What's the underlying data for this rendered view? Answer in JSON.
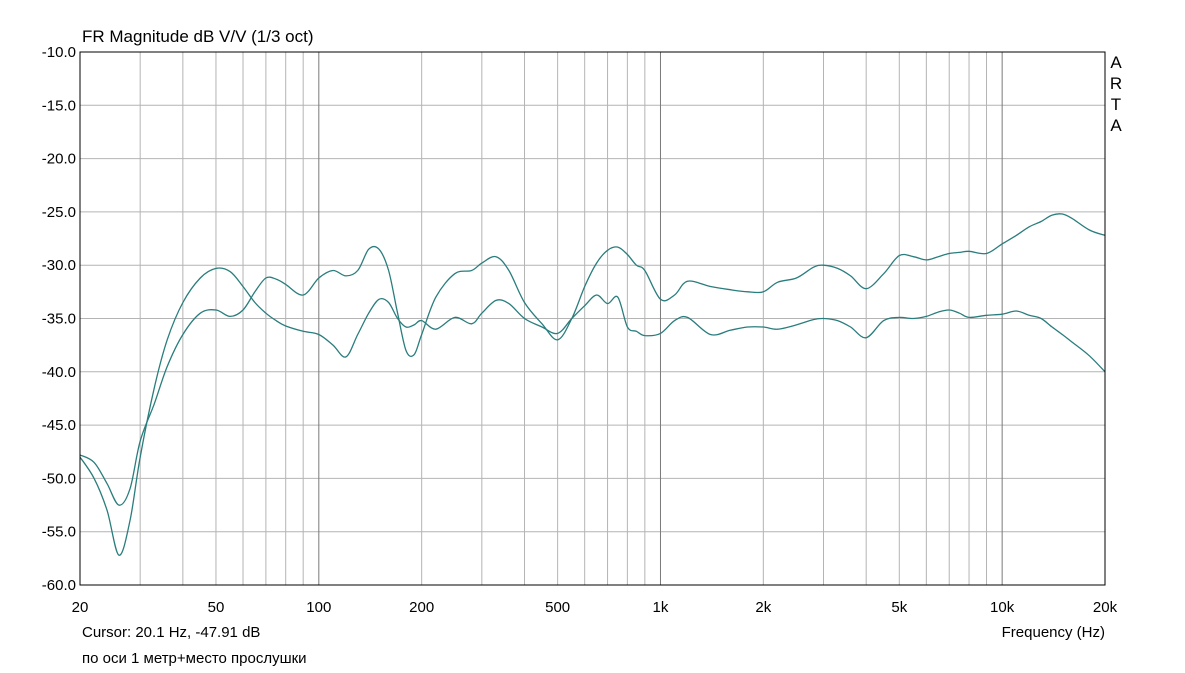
{
  "chart_data": {
    "type": "line",
    "title": "FR Magnitude dB V/V (1/3 oct)",
    "brand": "ARTA",
    "xlabel": "Frequency (Hz)",
    "x_scale": "log",
    "xlim": [
      20,
      20000
    ],
    "ylim": [
      -60,
      -10
    ],
    "grid": true,
    "line_color": "#2a7d7d",
    "y_ticks": [
      {
        "value": -10,
        "label": "-10.0"
      },
      {
        "value": -15,
        "label": "-15.0"
      },
      {
        "value": -20,
        "label": "-20.0"
      },
      {
        "value": -25,
        "label": "-25.0"
      },
      {
        "value": -30,
        "label": "-30.0"
      },
      {
        "value": -35,
        "label": "-35.0"
      },
      {
        "value": -40,
        "label": "-40.0"
      },
      {
        "value": -45,
        "label": "-45.0"
      },
      {
        "value": -50,
        "label": "-50.0"
      },
      {
        "value": -55,
        "label": "-55.0"
      },
      {
        "value": -60,
        "label": "-60.0"
      }
    ],
    "x_ticks": [
      {
        "value": 20,
        "label": "20"
      },
      {
        "value": 50,
        "label": "50"
      },
      {
        "value": 100,
        "label": "100"
      },
      {
        "value": 200,
        "label": "200"
      },
      {
        "value": 500,
        "label": "500"
      },
      {
        "value": 1000,
        "label": "1k"
      },
      {
        "value": 2000,
        "label": "2k"
      },
      {
        "value": 5000,
        "label": "5k"
      },
      {
        "value": 10000,
        "label": "10k"
      },
      {
        "value": 20000,
        "label": "20k"
      }
    ],
    "series": [
      {
        "x": [
          20,
          22,
          24,
          26,
          28,
          30,
          33,
          36,
          40,
          45,
          50,
          55,
          60,
          65,
          70,
          75,
          80,
          90,
          100,
          110,
          120,
          130,
          140,
          150,
          160,
          170,
          180,
          190,
          200,
          220,
          250,
          280,
          300,
          330,
          360,
          400,
          450,
          500,
          550,
          600,
          650,
          700,
          750,
          800,
          850,
          900,
          1000,
          1100,
          1200,
          1400,
          1600,
          1800,
          2000,
          2200,
          2500,
          2800,
          3000,
          3300,
          3600,
          4000,
          4500,
          5000,
          5500,
          6000,
          6500,
          7000,
          7500,
          8000,
          9000,
          10000,
          11000,
          12000,
          13000,
          14000,
          15000,
          16000,
          18000,
          20000
        ],
        "y": [
          -48.0,
          -50.0,
          -53.0,
          -57.2,
          -54.0,
          -48.0,
          -41.5,
          -37.0,
          -33.5,
          -31.2,
          -30.3,
          -30.6,
          -32.0,
          -33.5,
          -34.5,
          -35.2,
          -35.7,
          -36.2,
          -36.5,
          -37.5,
          -38.6,
          -36.5,
          -34.5,
          -33.2,
          -33.5,
          -35.0,
          -35.8,
          -35.6,
          -35.2,
          -36.0,
          -34.9,
          -35.5,
          -34.5,
          -33.3,
          -33.6,
          -35.0,
          -35.8,
          -36.4,
          -35.0,
          -33.8,
          -32.8,
          -33.6,
          -33.0,
          -35.8,
          -36.2,
          -36.6,
          -36.4,
          -35.2,
          -34.9,
          -36.5,
          -36.1,
          -35.8,
          -35.8,
          -36.0,
          -35.6,
          -35.1,
          -35.0,
          -35.2,
          -35.8,
          -36.8,
          -35.2,
          -34.9,
          -35.0,
          -34.8,
          -34.4,
          -34.2,
          -34.5,
          -34.9,
          -34.7,
          -34.6,
          -34.3,
          -34.7,
          -35.0,
          -35.8,
          -36.5,
          -37.2,
          -38.5,
          -40.0
        ]
      },
      {
        "x": [
          20,
          22,
          24,
          26,
          28,
          30,
          33,
          36,
          40,
          45,
          50,
          55,
          60,
          65,
          70,
          75,
          80,
          90,
          100,
          110,
          120,
          130,
          140,
          150,
          160,
          170,
          180,
          190,
          200,
          220,
          250,
          280,
          300,
          330,
          360,
          400,
          450,
          500,
          550,
          600,
          650,
          700,
          750,
          800,
          850,
          900,
          1000,
          1100,
          1200,
          1400,
          1600,
          1800,
          2000,
          2200,
          2500,
          2800,
          3000,
          3300,
          3600,
          4000,
          4500,
          5000,
          5500,
          6000,
          6500,
          7000,
          7500,
          8000,
          9000,
          10000,
          11000,
          12000,
          13000,
          14000,
          15000,
          16000,
          18000,
          20000
        ],
        "y": [
          -47.8,
          -48.5,
          -50.5,
          -52.5,
          -51.0,
          -46.5,
          -43.0,
          -39.5,
          -36.5,
          -34.5,
          -34.2,
          -34.8,
          -34.2,
          -32.5,
          -31.2,
          -31.3,
          -31.8,
          -32.8,
          -31.2,
          -30.5,
          -31.0,
          -30.5,
          -28.5,
          -28.5,
          -30.5,
          -34.5,
          -38.0,
          -38.4,
          -36.5,
          -33.0,
          -30.8,
          -30.5,
          -29.8,
          -29.2,
          -30.5,
          -33.5,
          -35.5,
          -37.0,
          -35.0,
          -32.0,
          -29.8,
          -28.6,
          -28.3,
          -29.0,
          -30.0,
          -30.5,
          -33.2,
          -32.8,
          -31.5,
          -32.0,
          -32.3,
          -32.5,
          -32.5,
          -31.6,
          -31.2,
          -30.2,
          -30.0,
          -30.3,
          -31.0,
          -32.2,
          -30.8,
          -29.1,
          -29.2,
          -29.5,
          -29.2,
          -28.9,
          -28.8,
          -28.7,
          -28.9,
          -28.0,
          -27.2,
          -26.4,
          -25.9,
          -25.3,
          -25.2,
          -25.6,
          -26.7,
          -27.2
        ]
      }
    ]
  },
  "footer": {
    "cursor": "Cursor: 20.1 Hz, -47.91 dB",
    "note": "по оси 1 метр+место прослушки"
  }
}
